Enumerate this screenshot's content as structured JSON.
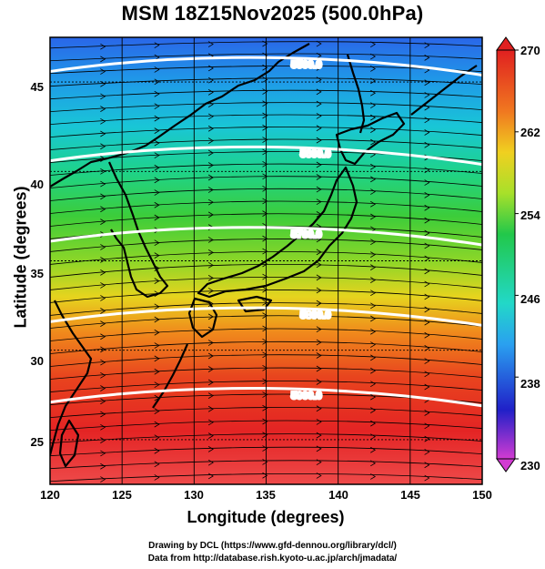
{
  "title": "MSM 18Z15Nov2025 (500.0hPa)",
  "xlabel": "Longitude (degrees)",
  "ylabel": "Latitude  (degrees)",
  "x_ticks": [
    "120",
    "125",
    "130",
    "135",
    "140",
    "145",
    "150"
  ],
  "y_ticks": [
    "25",
    "30",
    "35",
    "40",
    "45"
  ],
  "colorbar": {
    "ticks": [
      "270",
      "262",
      "254",
      "246",
      "238",
      "230"
    ],
    "min": 230,
    "max": 270,
    "colors": [
      "#d23bd2",
      "#2020c8",
      "#2aa0f0",
      "#22d8c8",
      "#22c84a",
      "#a8e02a",
      "#f0d020",
      "#f07820",
      "#e02020"
    ]
  },
  "contours": [
    {
      "label": "5500.0",
      "lat": 46.0
    },
    {
      "label": "5600.0",
      "lat": 41.0
    },
    {
      "label": "5700.0",
      "lat": 36.5
    },
    {
      "label": "5800.0",
      "lat": 32.0
    },
    {
      "label": "5900.0",
      "lat": 27.5
    }
  ],
  "credits": {
    "line1": "Drawing by DCL (https://www.gfd-dennou.org/library/dcl/)",
    "line2": "Data from http://database.rish.kyoto-u.ac.jp/arch/jmadata/"
  },
  "chart_data": {
    "type": "heatmap",
    "title": "MSM 18Z15Nov2025 (500.0hPa)",
    "xlabel": "Longitude (degrees)",
    "ylabel": "Latitude  (degrees)",
    "xlim": [
      120,
      150
    ],
    "ylim": [
      22.5,
      47.5
    ],
    "color_range": [
      230,
      270
    ],
    "color_by_latitude": [
      {
        "lat": 47.5,
        "value": 243
      },
      {
        "lat": 44,
        "value": 247
      },
      {
        "lat": 40,
        "value": 253
      },
      {
        "lat": 36,
        "value": 256
      },
      {
        "lat": 33,
        "value": 260
      },
      {
        "lat": 30,
        "value": 265
      },
      {
        "lat": 26,
        "value": 268
      },
      {
        "lat": 22.5,
        "value": 270
      }
    ],
    "contour_levels": [
      5500.0,
      5600.0,
      5700.0,
      5800.0,
      5900.0
    ],
    "streamlines": "westerly flow, west to east",
    "grid": true
  }
}
